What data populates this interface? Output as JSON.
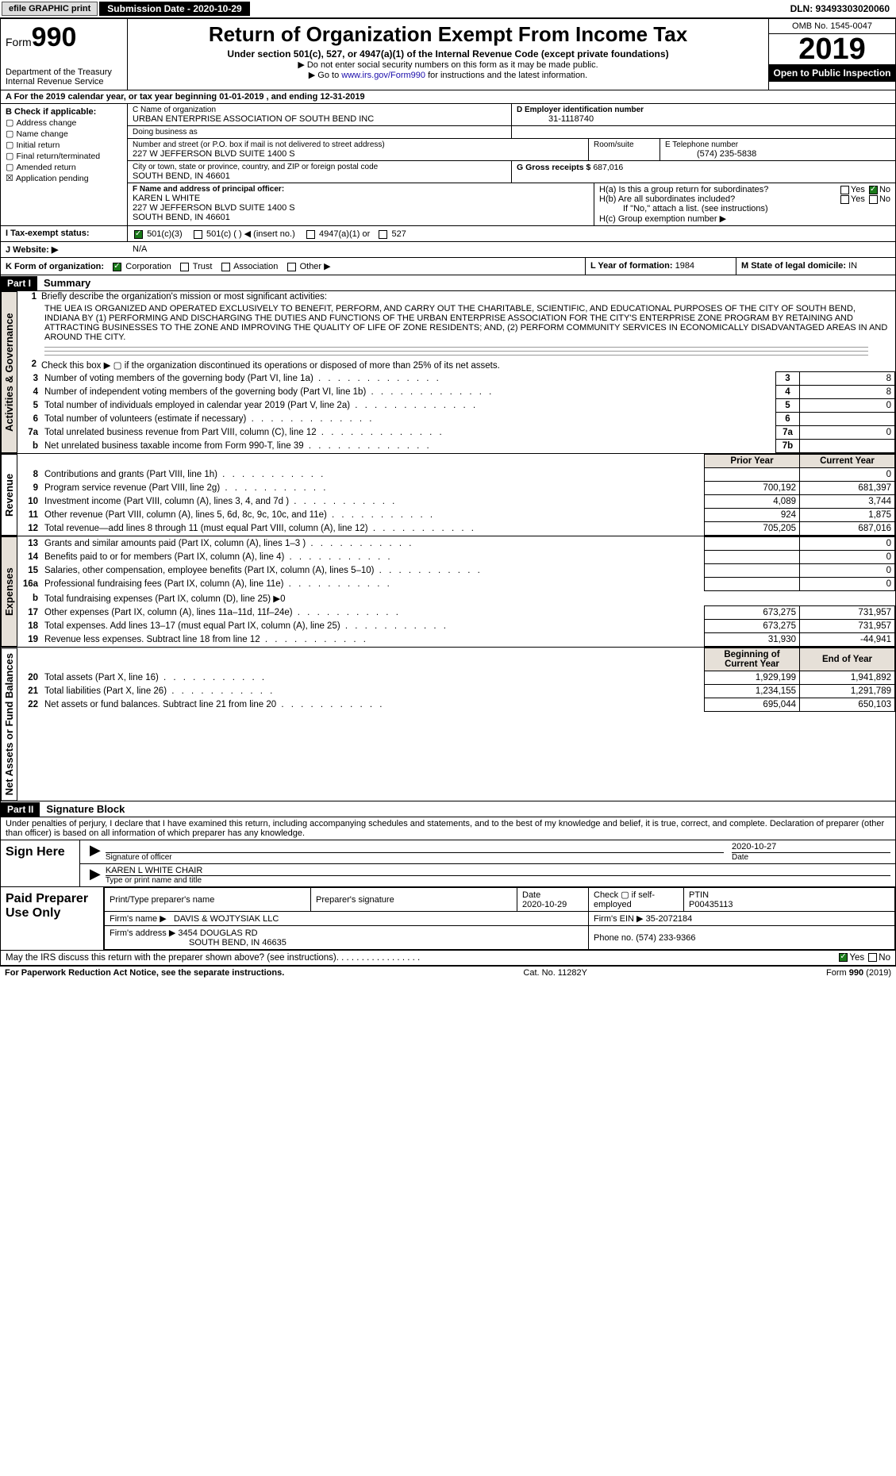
{
  "topbar": {
    "efile": "efile GRAPHIC print",
    "submission": "Submission Date - 2020-10-29",
    "dln": "DLN: 93493303020060"
  },
  "header": {
    "form_label": "Form",
    "form_number": "990",
    "dept": "Department of the Treasury\nInternal Revenue Service",
    "title": "Return of Organization Exempt From Income Tax",
    "subtitle": "Under section 501(c), 527, or 4947(a)(1) of the Internal Revenue Code (except private foundations)",
    "note1": "Do not enter social security numbers on this form as it may be made public.",
    "note2_pre": "Go to ",
    "note2_link": "www.irs.gov/Form990",
    "note2_post": " for instructions and the latest information.",
    "omb": "OMB No. 1545-0047",
    "year": "2019",
    "open": "Open to Public Inspection"
  },
  "row_a": "A   For the 2019 calendar year, or tax year beginning 01-01-2019   , and ending 12-31-2019",
  "col_b": {
    "header": "B Check if applicable:",
    "items": [
      "Address change",
      "Name change",
      "Initial return",
      "Final return/terminated",
      "Amended return",
      "Application pending"
    ],
    "checked": "Application pending"
  },
  "col_c": {
    "name_label": "C Name of organization",
    "name": "URBAN ENTERPRISE ASSOCIATION OF SOUTH BEND INC",
    "dba_label": "Doing business as",
    "dba": "",
    "street_label": "Number and street (or P.O. box if mail is not delivered to street address)",
    "street": "227 W JEFFERSON BLVD SUITE 1400 S",
    "room_label": "Room/suite",
    "city_label": "City or town, state or province, country, and ZIP or foreign postal code",
    "city": "SOUTH BEND, IN  46601",
    "f_label": "F Name and address of principal officer:",
    "f_name": "KAREN L WHITE",
    "f_addr1": "227 W JEFFERSON BLVD SUITE 1400 S",
    "f_addr2": "SOUTH BEND, IN  46601"
  },
  "col_d": {
    "ein_label": "D Employer identification number",
    "ein": "31-1118740",
    "phone_label": "E Telephone number",
    "phone": "(574) 235-5838",
    "gross_label": "G Gross receipts $",
    "gross": "687,016"
  },
  "h": {
    "a": "H(a)  Is this a group return for subordinates?",
    "a_yes": "Yes",
    "a_no": "No",
    "a_checked": "No",
    "b": "H(b)  Are all subordinates included?",
    "b_yes": "Yes",
    "b_no": "No",
    "b_note": "If \"No,\" attach a list. (see instructions)",
    "c": "H(c)  Group exemption number ▶"
  },
  "row_i": {
    "label": "I    Tax-exempt status:",
    "opts": [
      "501(c)(3)",
      "501(c) (  ) ◀ (insert no.)",
      "4947(a)(1) or",
      "527"
    ],
    "checked": 0
  },
  "row_j": {
    "label": "J   Website: ▶",
    "value": "N/A"
  },
  "row_k": {
    "label": "K Form of organization:",
    "opts": [
      "Corporation",
      "Trust",
      "Association",
      "Other ▶"
    ],
    "checked": 0,
    "l_label": "L Year of formation:",
    "l_value": "1984",
    "m_label": "M State of legal domicile:",
    "m_value": "IN"
  },
  "part1": {
    "header": "Part I",
    "title": "Summary"
  },
  "vtabs": {
    "ag": "Activities & Governance",
    "rev": "Revenue",
    "exp": "Expenses",
    "net": "Net Assets or Fund Balances"
  },
  "mission_label": "Briefly describe the organization's mission or most significant activities:",
  "mission": "THE UEA IS ORGANIZED AND OPERATED EXCLUSIVELY TO BENEFIT, PERFORM, AND CARRY OUT THE CHARITABLE, SCIENTIFIC, AND EDUCATIONAL PURPOSES OF THE CITY OF SOUTH BEND, INDIANA BY (1) PERFORMING AND DISCHARGING THE DUTIES AND FUNCTIONS OF THE URBAN ENTERPRISE ASSOCIATION FOR THE CITY'S ENTERPRISE ZONE PROGRAM BY RETAINING AND ATTRACTING BUSINESSES TO THE ZONE AND IMPROVING THE QUALITY OF LIFE OF ZONE RESIDENTS; AND, (2) PERFORM COMMUNITY SERVICES IN ECONOMICALLY DISADVANTAGED AREAS IN AND AROUND THE CITY.",
  "line2": "Check this box ▶ ▢  if the organization discontinued its operations or disposed of more than 25% of its net assets.",
  "ag_lines": [
    {
      "n": "3",
      "t": "Number of voting members of the governing body (Part VI, line 1a)",
      "c": "3",
      "v": "8"
    },
    {
      "n": "4",
      "t": "Number of independent voting members of the governing body (Part VI, line 1b)",
      "c": "4",
      "v": "8"
    },
    {
      "n": "5",
      "t": "Total number of individuals employed in calendar year 2019 (Part V, line 2a)",
      "c": "5",
      "v": "0"
    },
    {
      "n": "6",
      "t": "Total number of volunteers (estimate if necessary)",
      "c": "6",
      "v": ""
    },
    {
      "n": "7a",
      "t": "Total unrelated business revenue from Part VIII, column (C), line 12",
      "c": "7a",
      "v": "0"
    },
    {
      "n": "b",
      "t": "Net unrelated business taxable income from Form 990-T, line 39",
      "c": "7b",
      "v": ""
    }
  ],
  "two_col_hdr": {
    "prior": "Prior Year",
    "curr": "Current Year"
  },
  "rev_lines": [
    {
      "n": "8",
      "t": "Contributions and grants (Part VIII, line 1h)",
      "p": "",
      "c": "0"
    },
    {
      "n": "9",
      "t": "Program service revenue (Part VIII, line 2g)",
      "p": "700,192",
      "c": "681,397"
    },
    {
      "n": "10",
      "t": "Investment income (Part VIII, column (A), lines 3, 4, and 7d )",
      "p": "4,089",
      "c": "3,744"
    },
    {
      "n": "11",
      "t": "Other revenue (Part VIII, column (A), lines 5, 6d, 8c, 9c, 10c, and 11e)",
      "p": "924",
      "c": "1,875"
    },
    {
      "n": "12",
      "t": "Total revenue—add lines 8 through 11 (must equal Part VIII, column (A), line 12)",
      "p": "705,205",
      "c": "687,016"
    }
  ],
  "exp_lines": [
    {
      "n": "13",
      "t": "Grants and similar amounts paid (Part IX, column (A), lines 1–3 )",
      "p": "",
      "c": "0"
    },
    {
      "n": "14",
      "t": "Benefits paid to or for members (Part IX, column (A), line 4)",
      "p": "",
      "c": "0"
    },
    {
      "n": "15",
      "t": "Salaries, other compensation, employee benefits (Part IX, column (A), lines 5–10)",
      "p": "",
      "c": "0"
    },
    {
      "n": "16a",
      "t": "Professional fundraising fees (Part IX, column (A), line 11e)",
      "p": "",
      "c": "0"
    },
    {
      "n": "b",
      "t": "Total fundraising expenses (Part IX, column (D), line 25) ▶0",
      "p": null,
      "c": null
    },
    {
      "n": "17",
      "t": "Other expenses (Part IX, column (A), lines 11a–11d, 11f–24e)",
      "p": "673,275",
      "c": "731,957"
    },
    {
      "n": "18",
      "t": "Total expenses. Add lines 13–17 (must equal Part IX, column (A), line 25)",
      "p": "673,275",
      "c": "731,957"
    },
    {
      "n": "19",
      "t": "Revenue less expenses. Subtract line 18 from line 12",
      "p": "31,930",
      "c": "-44,941"
    }
  ],
  "net_hdr": {
    "beg": "Beginning of Current Year",
    "end": "End of Year"
  },
  "net_lines": [
    {
      "n": "20",
      "t": "Total assets (Part X, line 16)",
      "p": "1,929,199",
      "c": "1,941,892"
    },
    {
      "n": "21",
      "t": "Total liabilities (Part X, line 26)",
      "p": "1,234,155",
      "c": "1,291,789"
    },
    {
      "n": "22",
      "t": "Net assets or fund balances. Subtract line 21 from line 20",
      "p": "695,044",
      "c": "650,103"
    }
  ],
  "part2": {
    "header": "Part II",
    "title": "Signature Block"
  },
  "perjury": "Under penalties of perjury, I declare that I have examined this return, including accompanying schedules and statements, and to the best of my knowledge and belief, it is true, correct, and complete. Declaration of preparer (other than officer) is based on all information of which preparer has any knowledge.",
  "sign": {
    "here": "Sign Here",
    "sig_label": "Signature of officer",
    "date": "2020-10-27",
    "date_label": "Date",
    "name": "KAREN L WHITE  CHAIR",
    "name_label": "Type or print name and title"
  },
  "paid": {
    "label": "Paid Preparer Use Only",
    "col1": "Print/Type preparer's name",
    "col2": "Preparer's signature",
    "col3_label": "Date",
    "col3": "2020-10-29",
    "col4": "Check ▢ if self-employed",
    "ptin_label": "PTIN",
    "ptin": "P00435113",
    "firm_name_label": "Firm's name    ▶",
    "firm_name": "DAVIS & WOJTYSIAK LLC",
    "firm_ein_label": "Firm's EIN ▶",
    "firm_ein": "35-2072184",
    "firm_addr_label": "Firm's address ▶",
    "firm_addr1": "3454 DOUGLAS RD",
    "firm_addr2": "SOUTH BEND, IN  46635",
    "firm_phone_label": "Phone no.",
    "firm_phone": "(574) 233-9366"
  },
  "discuss": {
    "text": "May the IRS discuss this return with the preparer shown above? (see instructions)",
    "yes": "Yes",
    "no": "No",
    "checked": "Yes"
  },
  "footer": {
    "left": "For Paperwork Reduction Act Notice, see the separate instructions.",
    "mid": "Cat. No. 11282Y",
    "right_pre": "Form ",
    "right_form": "990",
    "right_post": " (2019)"
  }
}
